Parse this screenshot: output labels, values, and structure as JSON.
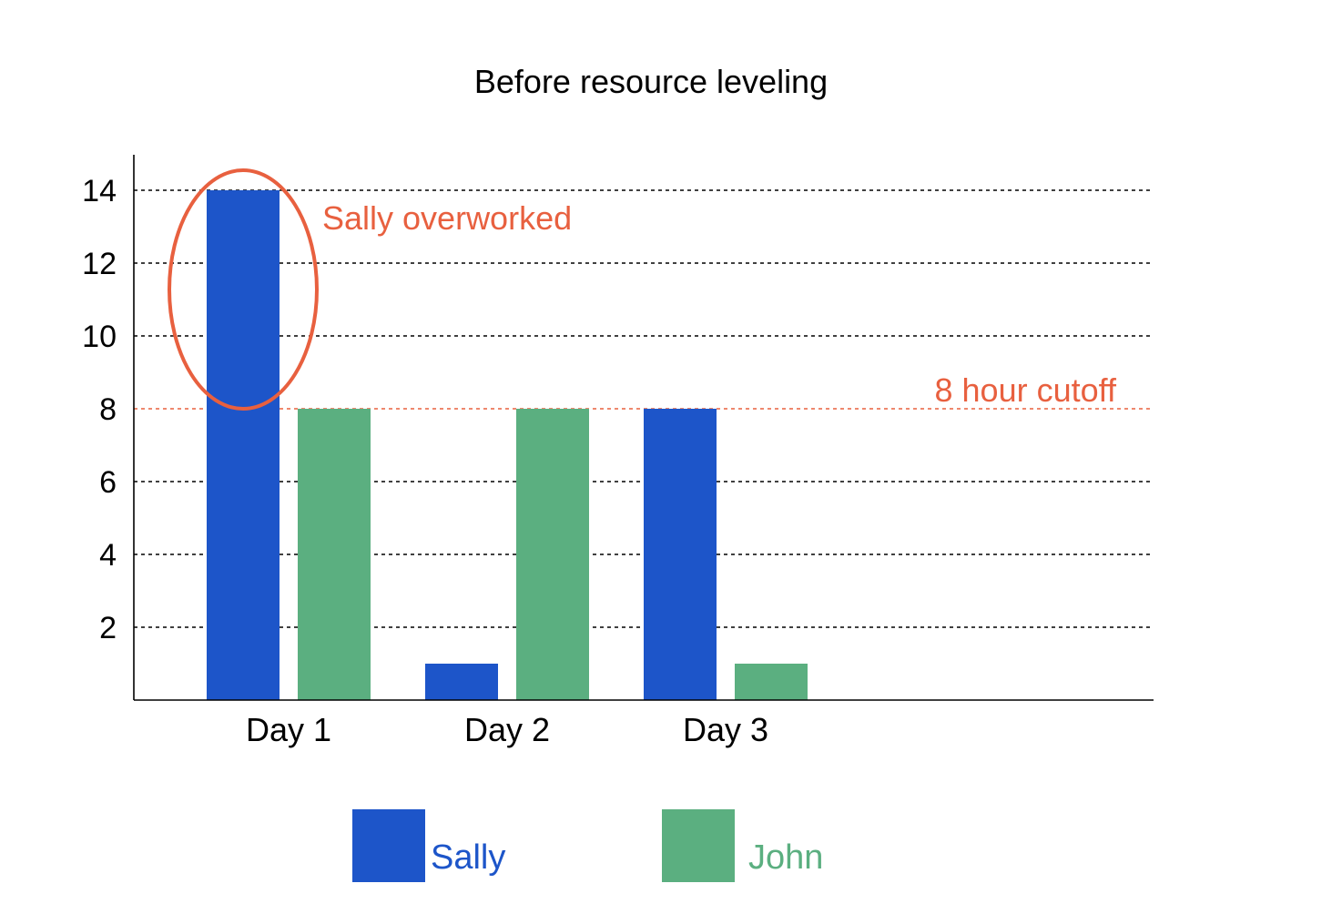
{
  "chart_data": {
    "type": "bar",
    "title": "Before resource leveling",
    "xlabel": "",
    "ylabel": "",
    "categories": [
      "Day 1",
      "Day 2",
      "Day 3"
    ],
    "series": [
      {
        "name": "Sally",
        "values": [
          14,
          1,
          8
        ],
        "color": "#1d55c9"
      },
      {
        "name": "John",
        "values": [
          8,
          8,
          1
        ],
        "color": "#5baf80"
      }
    ],
    "ylim": [
      0,
      15
    ],
    "yticks": [
      2,
      4,
      6,
      8,
      10,
      12,
      14
    ],
    "grid": true,
    "grid_style": "dashed",
    "legend_position": "bottom",
    "cutoff": {
      "value": 8,
      "label": "8 hour cutoff",
      "color": "#e8603f"
    },
    "annotation": {
      "text": "Sally overworked",
      "series": "Sally",
      "category": "Day 1",
      "color": "#e8603f"
    }
  }
}
